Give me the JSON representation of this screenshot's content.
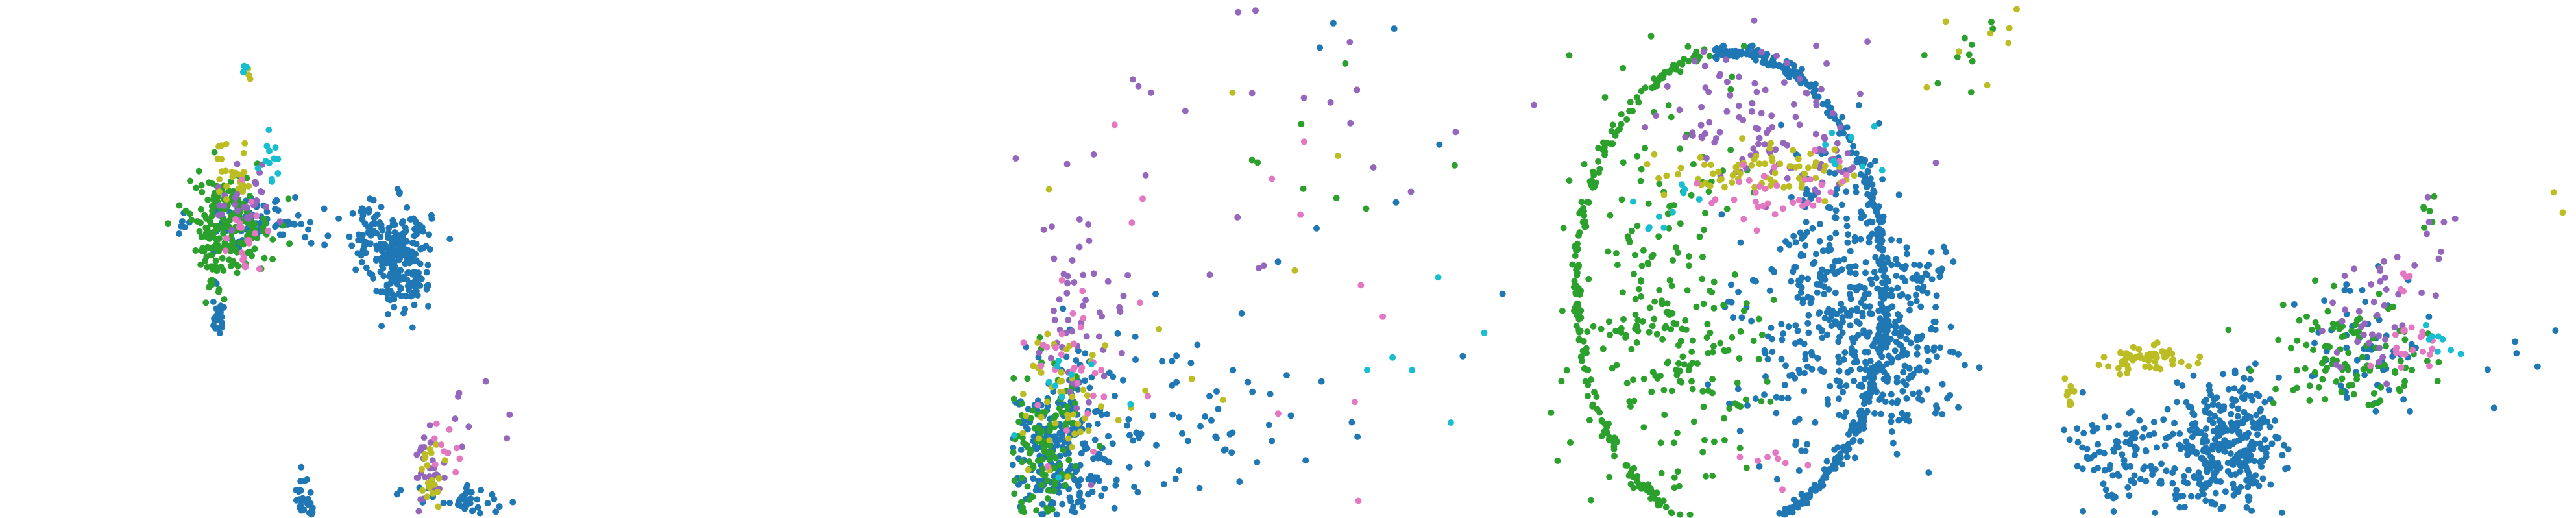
{
  "figure": {
    "type": "scatter-panels",
    "axes_visible": false,
    "grid": false,
    "legend": "none"
  },
  "colors": {
    "blue": "#1f77b4",
    "green": "#2ca02c",
    "purple": "#9467bd",
    "olive": "#bcbd22",
    "pink": "#e377c2",
    "cyan": "#17becf",
    "background": "#ffffff"
  },
  "chart_data": [
    {
      "type": "scatter",
      "title": "",
      "xlabel": "",
      "ylabel": "",
      "xlim": [
        0,
        1
      ],
      "ylim": [
        0,
        1
      ],
      "grid": false,
      "legend": "none",
      "series": [
        {
          "color": "#1f77b4",
          "clusters": [
            {
              "x": 0.77,
              "y": 0.5,
              "sx": 0.03,
              "sy": 0.05,
              "n": 230
            },
            {
              "x": 0.5,
              "y": 0.57,
              "sx": 0.06,
              "sy": 0.025,
              "n": 90
            },
            {
              "x": 0.71,
              "y": 0.56,
              "sx": 0.02,
              "sy": 0.03,
              "n": 40
            },
            {
              "x": 0.42,
              "y": 0.4,
              "sx": 0.006,
              "sy": 0.02,
              "n": 25
            },
            {
              "x": 0.59,
              "y": 0.04,
              "sx": 0.012,
              "sy": 0.03,
              "n": 30
            },
            {
              "x": 0.9,
              "y": 0.03,
              "sx": 0.05,
              "sy": 0.015,
              "n": 40
            }
          ]
        },
        {
          "color": "#2ca02c",
          "clusters": [
            {
              "x": 0.44,
              "y": 0.57,
              "sx": 0.04,
              "sy": 0.045,
              "n": 190
            },
            {
              "x": 0.41,
              "y": 0.47,
              "sx": 0.015,
              "sy": 0.04,
              "n": 20
            }
          ]
        },
        {
          "color": "#9467bd",
          "clusters": [
            {
              "x": 0.47,
              "y": 0.62,
              "sx": 0.03,
              "sy": 0.04,
              "n": 30
            },
            {
              "x": 0.83,
              "y": 0.1,
              "sx": 0.015,
              "sy": 0.035,
              "n": 30
            },
            {
              "x": 1.0,
              "y": 0.22,
              "sx": 0.06,
              "sy": 0.08,
              "n": 16
            }
          ]
        },
        {
          "color": "#bcbd22",
          "clusters": [
            {
              "x": 0.45,
              "y": 0.67,
              "sx": 0.025,
              "sy": 0.03,
              "n": 25
            },
            {
              "x": 0.83,
              "y": 0.08,
              "sx": 0.012,
              "sy": 0.03,
              "n": 20
            },
            {
              "x": 0.48,
              "y": 0.86,
              "sx": 0.004,
              "sy": 0.01,
              "n": 3
            }
          ]
        },
        {
          "color": "#e377c2",
          "clusters": [
            {
              "x": 0.47,
              "y": 0.55,
              "sx": 0.025,
              "sy": 0.04,
              "n": 20
            },
            {
              "x": 0.86,
              "y": 0.14,
              "sx": 0.015,
              "sy": 0.03,
              "n": 10
            }
          ]
        },
        {
          "color": "#17becf",
          "clusters": [
            {
              "x": 0.52,
              "y": 0.69,
              "sx": 0.01,
              "sy": 0.025,
              "n": 12
            },
            {
              "x": 0.47,
              "y": 0.86,
              "sx": 0.004,
              "sy": 0.01,
              "n": 4
            }
          ]
        }
      ]
    },
    {
      "type": "scatter",
      "title": "",
      "xlabel": "",
      "ylabel": "",
      "xlim": [
        0,
        1
      ],
      "ylim": [
        0,
        1
      ],
      "grid": false,
      "legend": "none",
      "series": [
        {
          "color": "#1f77b4",
          "clusters": [
            {
              "x": 0.09,
              "y": 0.11,
              "sx": 0.05,
              "sy": 0.09,
              "n": 280
            },
            {
              "x": 0.28,
              "y": 0.2,
              "sx": 0.13,
              "sy": 0.1,
              "n": 70
            },
            {
              "x": 0.55,
              "y": 0.55,
              "sx": 0.25,
              "sy": 0.25,
              "n": 20
            }
          ]
        },
        {
          "color": "#2ca02c",
          "clusters": [
            {
              "x": 0.06,
              "y": 0.14,
              "sx": 0.04,
              "sy": 0.08,
              "n": 120
            },
            {
              "x": 0.6,
              "y": 0.65,
              "sx": 0.12,
              "sy": 0.15,
              "n": 8
            }
          ]
        },
        {
          "color": "#9467bd",
          "clusters": [
            {
              "x": 0.12,
              "y": 0.37,
              "sx": 0.05,
              "sy": 0.1,
              "n": 50
            },
            {
              "x": 0.45,
              "y": 0.75,
              "sx": 0.3,
              "sy": 0.18,
              "n": 30
            }
          ]
        },
        {
          "color": "#bcbd22",
          "clusters": [
            {
              "x": 0.1,
              "y": 0.24,
              "sx": 0.05,
              "sy": 0.07,
              "n": 45
            },
            {
              "x": 0.45,
              "y": 0.5,
              "sx": 0.25,
              "sy": 0.2,
              "n": 10
            }
          ]
        },
        {
          "color": "#e377c2",
          "clusters": [
            {
              "x": 0.12,
              "y": 0.3,
              "sx": 0.05,
              "sy": 0.08,
              "n": 30
            },
            {
              "x": 0.45,
              "y": 0.55,
              "sx": 0.25,
              "sy": 0.2,
              "n": 15
            }
          ]
        },
        {
          "color": "#17becf",
          "clusters": [
            {
              "x": 0.1,
              "y": 0.2,
              "sx": 0.04,
              "sy": 0.05,
              "n": 10
            },
            {
              "x": 0.75,
              "y": 0.3,
              "sx": 0.06,
              "sy": 0.06,
              "n": 6
            }
          ]
        }
      ]
    },
    {
      "type": "scatter",
      "title": "",
      "xlabel": "",
      "ylabel": "",
      "xlim": [
        0,
        1
      ],
      "ylim": [
        0,
        1
      ],
      "grid": false,
      "legend": "none",
      "series": [
        {
          "color": "#1f77b4",
          "ring": {
            "cx": 0.35,
            "cy": 0.44,
            "rx": 0.29,
            "ry": 0.46,
            "n": 360,
            "from": -1.4,
            "to": 1.7
          }
        },
        {
          "color": "#2ca02c",
          "ring": {
            "cx": 0.35,
            "cy": 0.44,
            "rx": 0.29,
            "ry": 0.46,
            "n": 220,
            "from": 1.7,
            "to": 4.6
          }
        },
        {
          "color": "#1f77b4",
          "clusters": [
            {
              "x": 0.55,
              "y": 0.4,
              "sx": 0.08,
              "sy": 0.14,
              "n": 380
            },
            {
              "x": 0.66,
              "y": 0.32,
              "sx": 0.05,
              "sy": 0.07,
              "n": 150
            },
            {
              "x": 0.72,
              "y": 0.48,
              "sx": 0.03,
              "sy": 0.03,
              "n": 25
            }
          ]
        },
        {
          "color": "#2ca02c",
          "clusters": [
            {
              "x": 0.2,
              "y": 0.46,
              "sx": 0.08,
              "sy": 0.22,
              "n": 180
            },
            {
              "x": 0.3,
              "y": 0.3,
              "sx": 0.06,
              "sy": 0.12,
              "n": 70
            },
            {
              "x": 0.78,
              "y": 0.88,
              "sx": 0.05,
              "sy": 0.06,
              "n": 10
            }
          ]
        },
        {
          "color": "#9467bd",
          "clusters": [
            {
              "x": 0.4,
              "y": 0.78,
              "sx": 0.09,
              "sy": 0.07,
              "n": 90
            },
            {
              "x": 0.54,
              "y": 0.7,
              "sx": 0.03,
              "sy": 0.04,
              "n": 20
            }
          ]
        },
        {
          "color": "#bcbd22",
          "clusters": [
            {
              "x": 0.4,
              "y": 0.67,
              "sx": 0.09,
              "sy": 0.025,
              "n": 70
            },
            {
              "x": 0.82,
              "y": 0.92,
              "sx": 0.05,
              "sy": 0.06,
              "n": 8
            }
          ]
        },
        {
          "color": "#e377c2",
          "clusters": [
            {
              "x": 0.42,
              "y": 0.62,
              "sx": 0.07,
              "sy": 0.03,
              "n": 35
            },
            {
              "x": 0.42,
              "y": 0.1,
              "sx": 0.03,
              "sy": 0.04,
              "n": 8
            }
          ]
        },
        {
          "color": "#17becf",
          "clusters": [
            {
              "x": 0.25,
              "y": 0.6,
              "sx": 0.03,
              "sy": 0.03,
              "n": 10
            },
            {
              "x": 0.58,
              "y": 0.72,
              "sx": 0.03,
              "sy": 0.03,
              "n": 8
            }
          ]
        }
      ]
    },
    {
      "type": "scatter",
      "title": "",
      "xlabel": "",
      "ylabel": "",
      "xlim": [
        0,
        1
      ],
      "ylim": [
        0,
        1
      ],
      "grid": false,
      "legend": "none",
      "series": [
        {
          "color": "#1f77b4",
          "clusters": [
            {
              "x": 0.32,
              "y": 0.14,
              "sx": 0.05,
              "sy": 0.06,
              "n": 320
            },
            {
              "x": 0.13,
              "y": 0.12,
              "sx": 0.07,
              "sy": 0.05,
              "n": 120
            },
            {
              "x": 0.6,
              "y": 0.33,
              "sx": 0.06,
              "sy": 0.06,
              "n": 60
            },
            {
              "x": 0.85,
              "y": 0.3,
              "sx": 0.05,
              "sy": 0.05,
              "n": 6
            }
          ]
        },
        {
          "color": "#2ca02c",
          "clusters": [
            {
              "x": 0.55,
              "y": 0.32,
              "sx": 0.08,
              "sy": 0.05,
              "n": 110
            },
            {
              "x": 0.72,
              "y": 0.58,
              "sx": 0.02,
              "sy": 0.04,
              "n": 6
            }
          ]
        },
        {
          "color": "#bcbd22",
          "clusters": [
            {
              "x": 0.16,
              "y": 0.31,
              "sx": 0.04,
              "sy": 0.012,
              "n": 60
            },
            {
              "x": 0.01,
              "y": 0.25,
              "sx": 0.006,
              "sy": 0.02,
              "n": 10
            },
            {
              "x": 0.95,
              "y": 0.62,
              "sx": 0.01,
              "sy": 0.02,
              "n": 2
            }
          ]
        },
        {
          "color": "#9467bd",
          "clusters": [
            {
              "x": 0.62,
              "y": 0.4,
              "sx": 0.05,
              "sy": 0.06,
              "n": 40
            },
            {
              "x": 0.72,
              "y": 0.58,
              "sx": 0.02,
              "sy": 0.04,
              "n": 6
            }
          ]
        },
        {
          "color": "#e377c2",
          "clusters": [
            {
              "x": 0.68,
              "y": 0.33,
              "sx": 0.03,
              "sy": 0.03,
              "n": 20
            },
            {
              "x": 0.68,
              "y": 0.45,
              "sx": 0.02,
              "sy": 0.03,
              "n": 5
            }
          ]
        },
        {
          "color": "#17becf",
          "clusters": [
            {
              "x": 0.74,
              "y": 0.33,
              "sx": 0.02,
              "sy": 0.02,
              "n": 8
            }
          ]
        }
      ]
    }
  ]
}
